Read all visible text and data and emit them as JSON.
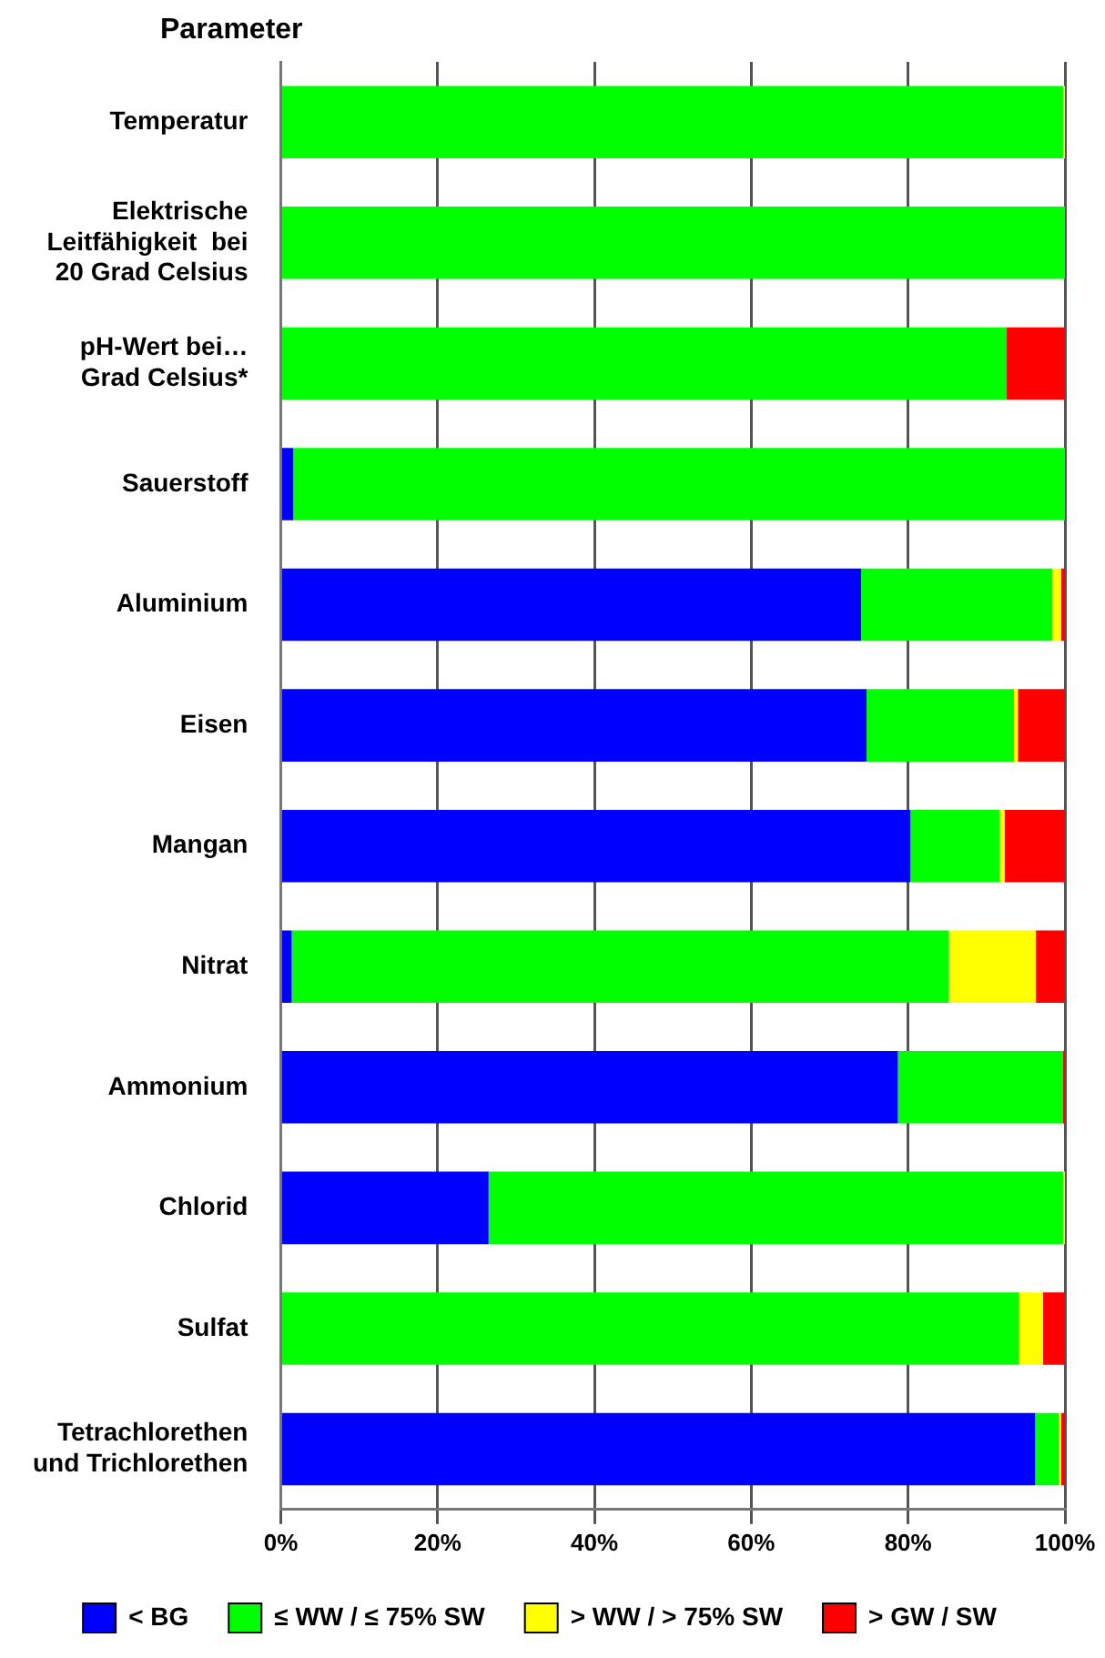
{
  "chart_data": {
    "type": "bar",
    "orientation": "horizontal",
    "stacked": true,
    "ylabel": "Parameter",
    "categories": [
      "Temperatur",
      "Elektrische\nLeitfähigkeit  bei\n20 Grad Celsius",
      "pH-Wert bei…\nGrad Celsius*",
      "Sauerstoff",
      "Aluminium",
      "Eisen",
      "Mangan",
      "Nitrat",
      "Ammonium",
      "Chlorid",
      "Sulfat",
      "Tetrachlorethen\nund Trichlorethen"
    ],
    "series": [
      {
        "name": "< BG",
        "color": "#0000ff",
        "values": [
          0,
          0,
          0,
          1.6,
          74.0,
          74.7,
          80.3,
          1.4,
          78.7,
          26.5,
          0,
          96.2
        ]
      },
      {
        "name": "≤ WW / ≤ 75% SW",
        "color": "#00ff00",
        "values": [
          99.8,
          100,
          92.5,
          98.4,
          24.4,
          18.8,
          11.4,
          83.8,
          21.0,
          73.3,
          94.1,
          3.0
        ]
      },
      {
        "name": "> WW / > 75% SW",
        "color": "#ffff00",
        "values": [
          0.2,
          0,
          0,
          0,
          1.1,
          0.5,
          0.6,
          11.1,
          0,
          0.2,
          3.1,
          0.3
        ]
      },
      {
        "name": "> GW / SW",
        "color": "#ff0000",
        "values": [
          0,
          0,
          7.5,
          0,
          0.5,
          6.0,
          7.7,
          3.7,
          0.3,
          0,
          2.8,
          0.5
        ]
      }
    ],
    "xlim": [
      0,
      100
    ],
    "xticks": [
      {
        "value": 0,
        "label": "0%"
      },
      {
        "value": 20,
        "label": "20%"
      },
      {
        "value": 40,
        "label": "40%"
      },
      {
        "value": 60,
        "label": "60%"
      },
      {
        "value": 80,
        "label": "80%"
      },
      {
        "value": 100,
        "label": "100%"
      }
    ],
    "grid": "x",
    "legend": "bottom"
  }
}
